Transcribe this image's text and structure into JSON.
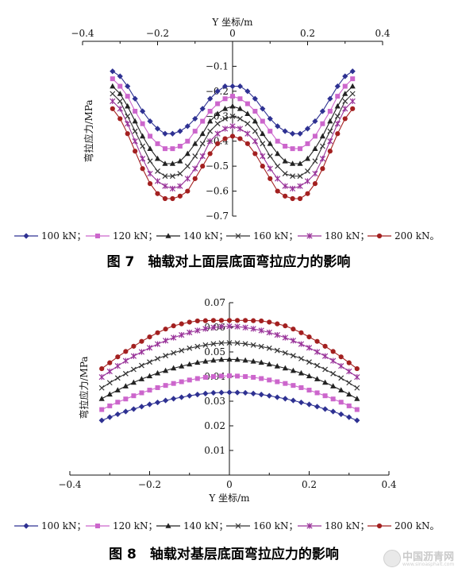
{
  "figure_7": {
    "caption": "图 7　轴载对上面层底面弯拉应力的影响"
  },
  "figure_8": {
    "caption": "图 8　轴载对基层底面弯拉应力的影响"
  },
  "watermark": {
    "text": "中国沥青网",
    "subtext": "www.sinoasphalt.com"
  },
  "chart_data": [
    {
      "id": "fig7",
      "type": "line",
      "xlabel": "Y 坐标/m",
      "ylabel": "弯拉应力/MPa",
      "xlim": [
        -0.4,
        0.4
      ],
      "ylim": [
        -0.7,
        0
      ],
      "x_axis_position": "top",
      "x_ticks": [
        "−0.4",
        "−0.2",
        "0",
        "0.2",
        "0.4"
      ],
      "y_ticks": [
        "−0.1",
        "−0.2",
        "−0.3",
        "−0.4",
        "−0.5",
        "−0.6",
        "−0.7"
      ],
      "x": [
        -0.32,
        -0.3,
        -0.28,
        -0.26,
        -0.24,
        -0.22,
        -0.2,
        -0.18,
        -0.16,
        -0.14,
        -0.12,
        -0.1,
        -0.08,
        -0.06,
        -0.04,
        -0.02,
        0.0,
        0.02,
        0.04,
        0.06,
        0.08,
        0.1,
        0.12,
        0.14,
        0.16,
        0.18,
        0.2,
        0.22,
        0.24,
        0.26,
        0.28,
        0.3,
        0.32
      ],
      "series": [
        {
          "name": "100 kN",
          "color": "#2e3192",
          "marker": "diamond",
          "values": [
            -0.12,
            -0.14,
            -0.18,
            -0.23,
            -0.28,
            -0.32,
            -0.35,
            -0.37,
            -0.37,
            -0.36,
            -0.34,
            -0.31,
            -0.27,
            -0.23,
            -0.2,
            -0.18,
            -0.18,
            -0.18,
            -0.2,
            -0.23,
            -0.27,
            -0.31,
            -0.34,
            -0.36,
            -0.37,
            -0.37,
            -0.35,
            -0.32,
            -0.28,
            -0.23,
            -0.18,
            -0.14,
            -0.12
          ]
        },
        {
          "name": "120 kN",
          "color": "#cc66cc",
          "marker": "square",
          "values": [
            -0.15,
            -0.18,
            -0.22,
            -0.28,
            -0.33,
            -0.38,
            -0.41,
            -0.43,
            -0.43,
            -0.42,
            -0.4,
            -0.36,
            -0.32,
            -0.28,
            -0.25,
            -0.23,
            -0.22,
            -0.23,
            -0.25,
            -0.28,
            -0.32,
            -0.36,
            -0.4,
            -0.42,
            -0.43,
            -0.43,
            -0.41,
            -0.38,
            -0.33,
            -0.28,
            -0.22,
            -0.18,
            -0.15
          ]
        },
        {
          "name": "140 kN",
          "color": "#222222",
          "marker": "triangle",
          "values": [
            -0.18,
            -0.21,
            -0.26,
            -0.32,
            -0.38,
            -0.43,
            -0.47,
            -0.49,
            -0.49,
            -0.48,
            -0.45,
            -0.41,
            -0.37,
            -0.32,
            -0.29,
            -0.27,
            -0.26,
            -0.27,
            -0.29,
            -0.32,
            -0.37,
            -0.41,
            -0.45,
            -0.48,
            -0.49,
            -0.49,
            -0.47,
            -0.43,
            -0.38,
            -0.32,
            -0.26,
            -0.21,
            -0.18
          ]
        },
        {
          "name": "160 kN",
          "color": "#333333",
          "marker": "x",
          "values": [
            -0.21,
            -0.24,
            -0.3,
            -0.36,
            -0.42,
            -0.48,
            -0.52,
            -0.54,
            -0.54,
            -0.53,
            -0.5,
            -0.46,
            -0.41,
            -0.36,
            -0.33,
            -0.31,
            -0.3,
            -0.31,
            -0.33,
            -0.36,
            -0.41,
            -0.46,
            -0.5,
            -0.53,
            -0.54,
            -0.54,
            -0.52,
            -0.48,
            -0.42,
            -0.36,
            -0.3,
            -0.24,
            -0.21
          ]
        },
        {
          "name": "180 kN",
          "color": "#993399",
          "marker": "asterisk",
          "values": [
            -0.24,
            -0.27,
            -0.33,
            -0.4,
            -0.47,
            -0.53,
            -0.56,
            -0.58,
            -0.59,
            -0.58,
            -0.55,
            -0.51,
            -0.46,
            -0.4,
            -0.37,
            -0.35,
            -0.34,
            -0.35,
            -0.37,
            -0.4,
            -0.46,
            -0.51,
            -0.55,
            -0.58,
            -0.59,
            -0.58,
            -0.56,
            -0.53,
            -0.47,
            -0.4,
            -0.33,
            -0.27,
            -0.24
          ]
        },
        {
          "name": "200 kN",
          "color": "#a32020",
          "marker": "circle",
          "values": [
            -0.27,
            -0.31,
            -0.37,
            -0.44,
            -0.51,
            -0.57,
            -0.61,
            -0.63,
            -0.63,
            -0.62,
            -0.6,
            -0.55,
            -0.5,
            -0.45,
            -0.41,
            -0.39,
            -0.38,
            -0.39,
            -0.41,
            -0.45,
            -0.5,
            -0.55,
            -0.6,
            -0.62,
            -0.63,
            -0.63,
            -0.61,
            -0.57,
            -0.51,
            -0.44,
            -0.37,
            -0.31,
            -0.27
          ]
        }
      ],
      "legend_labels": [
        "100 kN；",
        "120 kN；",
        "140 kN；",
        "160 kN；",
        "180 kN；",
        "200 kN。"
      ]
    },
    {
      "id": "fig8",
      "type": "line",
      "xlabel": "Y 坐标/m",
      "ylabel": "弯拉应力/MPa",
      "xlim": [
        -0.4,
        0.4
      ],
      "ylim": [
        0,
        0.07
      ],
      "x_axis_position": "bottom",
      "x_ticks": [
        "−0.4",
        "−0.2",
        "0",
        "0.2",
        "0.4"
      ],
      "y_ticks": [
        "0.01",
        "0.02",
        "0.03",
        "0.04",
        "0.05",
        "0.06",
        "0.07"
      ],
      "x": [
        -0.32,
        -0.3,
        -0.28,
        -0.26,
        -0.24,
        -0.22,
        -0.2,
        -0.18,
        -0.16,
        -0.14,
        -0.12,
        -0.1,
        -0.08,
        -0.06,
        -0.04,
        -0.02,
        0.0,
        0.02,
        0.04,
        0.06,
        0.08,
        0.1,
        0.12,
        0.14,
        0.16,
        0.18,
        0.2,
        0.22,
        0.24,
        0.26,
        0.28,
        0.3,
        0.32
      ],
      "series": [
        {
          "name": "100 kN",
          "color": "#2e3192",
          "marker": "diamond",
          "values": [
            0.0222,
            0.0235,
            0.0247,
            0.0258,
            0.0268,
            0.0278,
            0.0287,
            0.0295,
            0.0303,
            0.031,
            0.0316,
            0.0322,
            0.0327,
            0.0331,
            0.0334,
            0.0335,
            0.0336,
            0.0335,
            0.0334,
            0.0331,
            0.0327,
            0.0322,
            0.0316,
            0.031,
            0.0303,
            0.0295,
            0.0287,
            0.0278,
            0.0268,
            0.0258,
            0.0247,
            0.0235,
            0.0222
          ]
        },
        {
          "name": "120 kN",
          "color": "#cc66cc",
          "marker": "square",
          "values": [
            0.0266,
            0.0281,
            0.0296,
            0.0309,
            0.0322,
            0.0334,
            0.0345,
            0.0355,
            0.0364,
            0.0372,
            0.0379,
            0.0386,
            0.0392,
            0.0397,
            0.04,
            0.0402,
            0.0403,
            0.0402,
            0.04,
            0.0397,
            0.0392,
            0.0386,
            0.0379,
            0.0372,
            0.0364,
            0.0355,
            0.0345,
            0.0334,
            0.0322,
            0.0309,
            0.0296,
            0.0281,
            0.0266
          ]
        },
        {
          "name": "140 kN",
          "color": "#222222",
          "marker": "triangle",
          "values": [
            0.031,
            0.0328,
            0.0345,
            0.0361,
            0.0376,
            0.039,
            0.0402,
            0.0414,
            0.0424,
            0.0434,
            0.0442,
            0.045,
            0.0457,
            0.0462,
            0.0466,
            0.0469,
            0.047,
            0.0469,
            0.0466,
            0.0462,
            0.0457,
            0.045,
            0.0442,
            0.0434,
            0.0424,
            0.0414,
            0.0402,
            0.039,
            0.0376,
            0.0361,
            0.0345,
            0.0328,
            0.031
          ]
        },
        {
          "name": "160 kN",
          "color": "#333333",
          "marker": "x",
          "values": [
            0.0354,
            0.0375,
            0.0394,
            0.0412,
            0.0429,
            0.0445,
            0.0459,
            0.0473,
            0.0485,
            0.0496,
            0.0506,
            0.0515,
            0.0522,
            0.0528,
            0.0533,
            0.0536,
            0.0537,
            0.0536,
            0.0533,
            0.0528,
            0.0522,
            0.0515,
            0.0506,
            0.0496,
            0.0485,
            0.0473,
            0.0459,
            0.0445,
            0.0429,
            0.0412,
            0.0394,
            0.0375,
            0.0354
          ]
        },
        {
          "name": "180 kN",
          "color": "#993399",
          "marker": "asterisk",
          "values": [
            0.0398,
            0.0421,
            0.0443,
            0.0464,
            0.0483,
            0.05,
            0.0517,
            0.0532,
            0.0546,
            0.0558,
            0.0569,
            0.0579,
            0.0587,
            0.0594,
            0.0599,
            0.0603,
            0.0604,
            0.0603,
            0.0599,
            0.0594,
            0.0587,
            0.0579,
            0.0569,
            0.0558,
            0.0546,
            0.0532,
            0.0517,
            0.05,
            0.0483,
            0.0464,
            0.0443,
            0.0421,
            0.0398
          ]
        },
        {
          "name": "200 kN",
          "color": "#a32020",
          "marker": "circle",
          "values": [
            0.0432,
            0.0456,
            0.048,
            0.0502,
            0.0523,
            0.0543,
            0.0561,
            0.0578,
            0.0593,
            0.0606,
            0.0614,
            0.0621,
            0.0626,
            0.0627,
            0.0628,
            0.0628,
            0.0628,
            0.0628,
            0.0628,
            0.0627,
            0.0626,
            0.0621,
            0.0614,
            0.0606,
            0.0593,
            0.0578,
            0.0561,
            0.0543,
            0.0523,
            0.0502,
            0.048,
            0.0456,
            0.0432
          ]
        }
      ],
      "legend_labels": [
        "100 kN；",
        "120 kN；",
        "140 kN；",
        "160 kN；",
        "180 kN；",
        "200 kN。"
      ]
    }
  ]
}
